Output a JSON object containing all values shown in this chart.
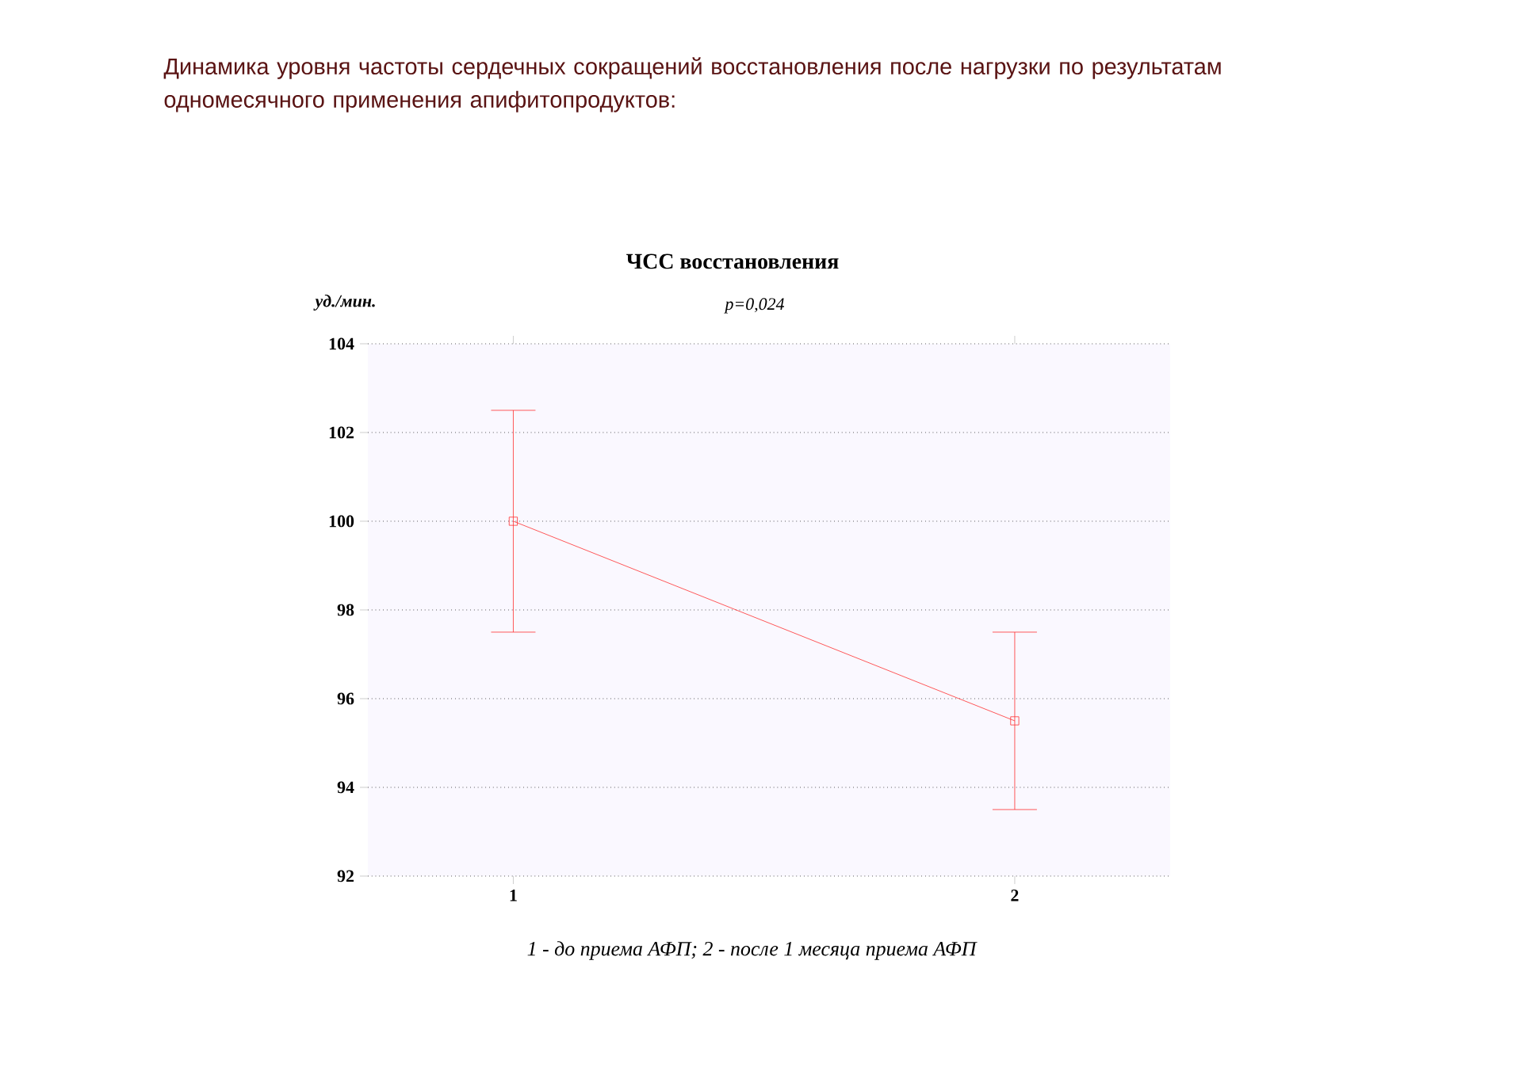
{
  "chart_data": {
    "type": "line",
    "title": "Динамика уровня частоты сердечных сокращений восстановления после нагрузки по результатам одномесячного применения апифитопродуктов:",
    "subtitle": "ЧСС восстановления",
    "ylabel": "уд./мин.",
    "annotations": [
      "p=0,024",
      "1 - до приема АФП; 2 - после 1 месяца приема АФП"
    ],
    "categories": [
      "1",
      "2"
    ],
    "values": [
      100,
      95.5
    ],
    "errors": [
      2.5,
      2
    ],
    "color": "#ff3030",
    "ylim": [
      92,
      104
    ],
    "yticks": [
      92,
      94,
      96,
      98,
      100,
      102,
      104
    ],
    "grid": "y",
    "marker": "square",
    "line_style": "solid"
  }
}
